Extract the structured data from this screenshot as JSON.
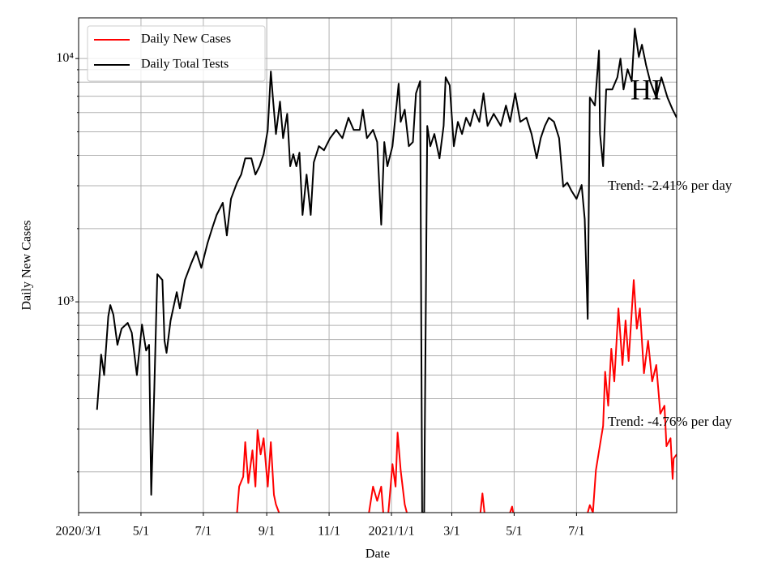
{
  "chart_data": {
    "type": "line",
    "xlabel": "Date",
    "ylabel": "Daily New Cases",
    "log_y": true,
    "grid": true,
    "legend": "upper left",
    "xlim": [
      "2020-03-01",
      "2021-10-07"
    ],
    "xticks": [
      {
        "value": "2020-03-01",
        "label": "2020/3/1"
      },
      {
        "value": "2020-05-01",
        "label": "5/1"
      },
      {
        "value": "2020-07-01",
        "label": "7/1"
      },
      {
        "value": "2020-09-01",
        "label": "9/1"
      },
      {
        "value": "2020-11-01",
        "label": "11/1"
      },
      {
        "value": "2021-01-01",
        "label": "2021/1/1"
      },
      {
        "value": "2021-03-01",
        "label": "3/1"
      },
      {
        "value": "2021-05-01",
        "label": "5/1"
      },
      {
        "value": "2021-07-01",
        "label": "7/1"
      }
    ],
    "ylim": [
      136,
      14700
    ],
    "yticks": [
      {
        "value": 1000,
        "label": "10³"
      },
      {
        "value": 10000,
        "label": "10⁴"
      }
    ],
    "yminorticks": [
      200,
      300,
      400,
      500,
      600,
      700,
      800,
      900,
      2000,
      3000,
      4000,
      5000,
      6000,
      7000,
      8000,
      9000
    ],
    "annotations": [
      "Trend: -2.41% per day",
      "Trend: -4.76% per day",
      "HI"
    ],
    "series": [
      {
        "name": "Daily New Cases",
        "color": "#ff0000",
        "x": [
          "2020-08-03",
          "2020-08-05",
          "2020-08-09",
          "2020-08-11",
          "2020-08-14",
          "2020-08-18",
          "2020-08-21",
          "2020-08-23",
          "2020-08-26",
          "2020-08-29",
          "2020-09-02",
          "2020-09-05",
          "2020-09-08",
          "2020-09-10",
          "2020-09-13",
          "2020-11-01",
          "2020-12-10",
          "2020-12-14",
          "2020-12-18",
          "2020-12-22",
          "2020-12-24",
          "2020-12-26",
          "2020-12-29",
          "2021-01-02",
          "2021-01-05",
          "2021-01-07",
          "2021-01-10",
          "2021-01-14",
          "2021-01-16",
          "2021-02-15",
          "2021-03-29",
          "2021-03-31",
          "2021-04-02",
          "2021-04-15",
          "2021-04-27",
          "2021-04-29",
          "2021-04-30",
          "2021-06-01",
          "2021-07-12",
          "2021-07-14",
          "2021-07-17",
          "2021-07-20",
          "2021-07-24",
          "2021-07-27",
          "2021-07-29",
          "2021-08-01",
          "2021-08-04",
          "2021-08-07",
          "2021-08-11",
          "2021-08-15",
          "2021-08-18",
          "2021-08-21",
          "2021-08-26",
          "2021-08-29",
          "2021-09-01",
          "2021-09-05",
          "2021-09-09",
          "2021-09-13",
          "2021-09-17",
          "2021-09-21",
          "2021-09-25",
          "2021-09-27",
          "2021-10-01",
          "2021-10-03",
          "2021-10-04",
          "2021-10-07"
        ],
        "values": [
          136,
          174,
          191,
          265,
          180,
          245,
          174,
          297,
          236,
          275,
          174,
          265,
          161,
          147,
          136,
          null,
          136,
          174,
          152,
          174,
          136,
          null,
          136,
          215,
          174,
          290,
          203,
          147,
          136,
          null,
          136,
          163,
          136,
          null,
          136,
          144,
          136,
          null,
          136,
          146,
          136,
          203,
          259,
          309,
          516,
          374,
          641,
          471,
          940,
          550,
          838,
          571,
          1230,
          776,
          940,
          509,
          692,
          471,
          550,
          347,
          374,
          255,
          275,
          187,
          227,
          236
        ]
      },
      {
        "name": "Daily Total Tests",
        "color": "#000000",
        "x": [
          "2020-03-19",
          "2020-03-23",
          "2020-03-26",
          "2020-03-30",
          "2020-04-01",
          "2020-04-04",
          "2020-04-08",
          "2020-04-12",
          "2020-04-18",
          "2020-04-22",
          "2020-04-27",
          "2020-05-02",
          "2020-05-06",
          "2020-05-09",
          "2020-05-11",
          "2020-05-14",
          "2020-05-17",
          "2020-05-22",
          "2020-05-24",
          "2020-05-26",
          "2020-05-30",
          "2020-06-05",
          "2020-06-08",
          "2020-06-13",
          "2020-06-19",
          "2020-06-24",
          "2020-06-29",
          "2020-07-05",
          "2020-07-10",
          "2020-07-14",
          "2020-07-20",
          "2020-07-24",
          "2020-07-28",
          "2020-08-03",
          "2020-08-07",
          "2020-08-11",
          "2020-08-17",
          "2020-08-21",
          "2020-08-25",
          "2020-08-29",
          "2020-09-02",
          "2020-09-05",
          "2020-09-07",
          "2020-09-10",
          "2020-09-14",
          "2020-09-17",
          "2020-09-21",
          "2020-09-24",
          "2020-09-27",
          "2020-09-30",
          "2020-10-03",
          "2020-10-06",
          "2020-10-10",
          "2020-10-14",
          "2020-10-17",
          "2020-10-22",
          "2020-10-27",
          "2020-11-02",
          "2020-11-08",
          "2020-11-14",
          "2020-11-20",
          "2020-11-25",
          "2020-12-01",
          "2020-12-04",
          "2020-12-08",
          "2020-12-14",
          "2020-12-18",
          "2020-12-22",
          "2020-12-25",
          "2020-12-28",
          "2021-01-02",
          "2021-01-06",
          "2021-01-08",
          "2021-01-10",
          "2021-01-14",
          "2021-01-18",
          "2021-01-22",
          "2021-01-25",
          "2021-01-29",
          "2021-01-31",
          "2021-02-02",
          "2021-02-05",
          "2021-02-08",
          "2021-02-12",
          "2021-02-17",
          "2021-02-21",
          "2021-02-23",
          "2021-02-27",
          "2021-03-03",
          "2021-03-07",
          "2021-03-11",
          "2021-03-15",
          "2021-03-19",
          "2021-03-23",
          "2021-03-28",
          "2021-04-01",
          "2021-04-05",
          "2021-04-11",
          "2021-04-18",
          "2021-04-23",
          "2021-04-27",
          "2021-05-02",
          "2021-05-07",
          "2021-05-13",
          "2021-05-18",
          "2021-05-23",
          "2021-05-27",
          "2021-05-31",
          "2021-06-04",
          "2021-06-09",
          "2021-06-14",
          "2021-06-18",
          "2021-06-22",
          "2021-06-26",
          "2021-07-01",
          "2021-07-06",
          "2021-07-09",
          "2021-07-12",
          "2021-07-14",
          "2021-07-19",
          "2021-07-23",
          "2021-07-24",
          "2021-07-27",
          "2021-07-30",
          "2021-08-05",
          "2021-08-10",
          "2021-08-13",
          "2021-08-16",
          "2021-08-20",
          "2021-08-24",
          "2021-08-27",
          "2021-08-31",
          "2021-09-03",
          "2021-09-07",
          "2021-09-11",
          "2021-09-17",
          "2021-09-22",
          "2021-09-28",
          "2021-10-03",
          "2021-10-07"
        ],
        "values": [
          360,
          607,
          500,
          870,
          970,
          885,
          666,
          776,
          819,
          747,
          500,
          807,
          631,
          666,
          161,
          437,
          1298,
          1230,
          692,
          617,
          838,
          1096,
          940,
          1230,
          1435,
          1610,
          1380,
          1738,
          2028,
          2275,
          2553,
          1875,
          2649,
          3090,
          3336,
          3890,
          3890,
          3336,
          3606,
          4045,
          5093,
          8851,
          6918,
          4898,
          6653,
          4710,
          5929,
          3606,
          4045,
          3606,
          4105,
          2275,
          3336,
          2275,
          3742,
          4365,
          4198,
          4710,
          5093,
          4710,
          5715,
          5093,
          5093,
          6166,
          4710,
          5093,
          4539,
          2075,
          4539,
          3606,
          4365,
          6412,
          7889,
          5495,
          6166,
          4365,
          4539,
          7194,
          8072,
          136,
          136,
          5284,
          4365,
          4898,
          3890,
          5284,
          8375,
          7762,
          4365,
          5495,
          4898,
          5715,
          5284,
          6166,
          5495,
          7194,
          5284,
          5929,
          5284,
          6412,
          5495,
          7194,
          5495,
          5715,
          4898,
          3890,
          4710,
          5284,
          5715,
          5495,
          4710,
          2972,
          3090,
          2864,
          2649,
          3020,
          2188,
          851,
          6918,
          6412,
          10789,
          4898,
          3606,
          7464,
          7464,
          8375,
          10000,
          7464,
          9045,
          8072,
          13280,
          10155,
          11400,
          9405,
          8072,
          6918,
          8375,
          6918,
          6166,
          5715
        ]
      }
    ]
  }
}
